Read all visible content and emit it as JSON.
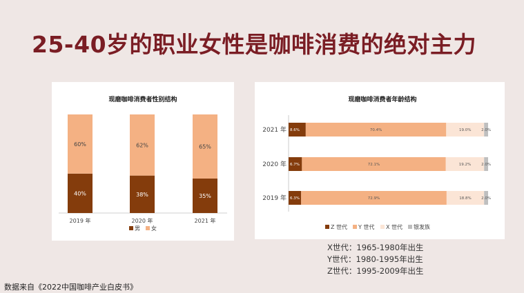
{
  "page_title": "25-40岁的职业女性是咖啡消费的绝对主力",
  "chart_data": [
    {
      "type": "bar",
      "stacked": true,
      "orientation": "vertical",
      "title": "现磨咖啡消费者性别结构",
      "categories": [
        "2019 年",
        "2020 年",
        "2021 年"
      ],
      "series": [
        {
          "name": "男",
          "values": [
            40,
            38,
            35
          ],
          "labels": [
            "40%",
            "38%",
            "35%"
          ]
        },
        {
          "name": "女",
          "values": [
            60,
            62,
            65
          ],
          "labels": [
            "60%",
            "62%",
            "65%"
          ]
        }
      ],
      "ylim": [
        0,
        100
      ],
      "legend_position": "bottom"
    },
    {
      "type": "bar",
      "stacked": true,
      "orientation": "horizontal",
      "title": "现磨咖啡消费者年龄结构",
      "categories": [
        "2021 年",
        "2020 年",
        "2019 年"
      ],
      "series": [
        {
          "name": "Z 世代",
          "values": [
            8.6,
            6.7,
            6.3
          ],
          "labels": [
            "8.6%",
            "6.7%",
            "6.3%"
          ]
        },
        {
          "name": "Y 世代",
          "values": [
            70.4,
            72.1,
            72.9
          ],
          "labels": [
            "70.4%",
            "72.1%",
            "72.9%"
          ]
        },
        {
          "name": "X 世代",
          "values": [
            19.0,
            19.2,
            18.8
          ],
          "labels": [
            "19.0%",
            "19.2%",
            "18.8%"
          ]
        },
        {
          "name": "银发族",
          "values": [
            2.0,
            2.0,
            2.0
          ],
          "labels": [
            "2.0%",
            "2.0%",
            "2.0%"
          ]
        }
      ],
      "xlim": [
        0,
        100
      ],
      "legend_position": "bottom"
    }
  ],
  "colors": {
    "male": "#843c0c",
    "female": "#f4b183",
    "z_gen": "#843c0c",
    "y_gen": "#f4b183",
    "x_gen": "#fbe5d6",
    "silver": "#bfbfbf",
    "title": "#7a1d24"
  },
  "notes": [
    "X世代：1965-1980年出生",
    "Y世代：1980-1995年出生",
    "Z世代：1995-2009年出生"
  ],
  "source": "数据来自《2022中国咖啡产业白皮书》"
}
